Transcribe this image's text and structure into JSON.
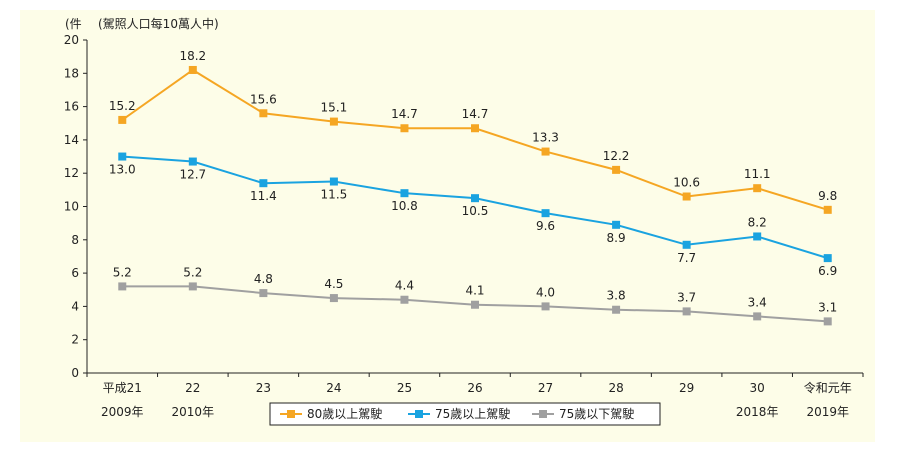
{
  "chart_data": {
    "type": "line",
    "title": "",
    "y_unit_left": "(件",
    "y_unit_right": "(駕照人口每10萬人中)",
    "ylim": [
      0,
      20
    ],
    "yticks": [
      0,
      2,
      4,
      6,
      8,
      10,
      12,
      14,
      16,
      18,
      20
    ],
    "categories": [
      "平成21",
      "22",
      "23",
      "24",
      "25",
      "26",
      "27",
      "28",
      "29",
      "30",
      "令和元年"
    ],
    "categories_year": [
      "2009年",
      "2010年",
      "",
      "",
      "",
      "",
      "",
      "",
      "",
      "2018年",
      "2019年"
    ],
    "series": [
      {
        "name": "80歲以上駕駛",
        "color": "#f5a623",
        "values": [
          15.2,
          18.2,
          15.6,
          15.1,
          14.7,
          14.7,
          13.3,
          12.2,
          10.6,
          11.1,
          9.8
        ]
      },
      {
        "name": "75歲以上駕駛",
        "color": "#1aa3e0",
        "values": [
          13.0,
          12.7,
          11.4,
          11.5,
          10.8,
          10.5,
          9.6,
          8.9,
          7.7,
          8.2,
          6.9
        ]
      },
      {
        "name": "75歲以下駕駛",
        "color": "#a0a0a0",
        "values": [
          5.2,
          5.2,
          4.8,
          4.5,
          4.4,
          4.1,
          4.0,
          3.8,
          3.7,
          3.4,
          3.1
        ]
      }
    ]
  }
}
